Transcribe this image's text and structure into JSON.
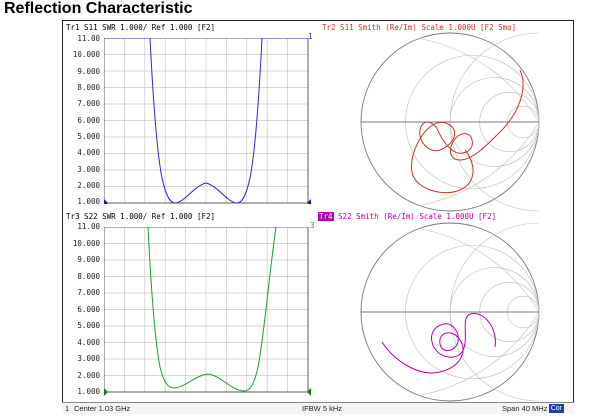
{
  "page_title": "Reflection Characteristic",
  "traces": {
    "tr1": {
      "label": "Tr1 S11 SWR 1.000/ Ref 1.000 [F2]",
      "color": "#2a2acf",
      "channel": "1"
    },
    "tr2": {
      "label": "Tr2 S11 Smith (Re/Im) Scale 1.000U [F2 Smo]",
      "color": "#c0392b"
    },
    "tr3": {
      "label": "Tr3 S22 SWR 1.000/ Ref 1.000 [F2]",
      "color": "#1f9d2a",
      "channel": "3"
    },
    "tr4": {
      "badge": "Tr4",
      "label": " S22 Smith (Re/Im) Scale 1.000U [F2]",
      "color": "#b000b0"
    }
  },
  "y_ticks": [
    "11.00",
    "10.000",
    "9.000",
    "8.000",
    "7.000",
    "6.000",
    "5.000",
    "4.000",
    "3.000",
    "2.000",
    "1.000"
  ],
  "status": {
    "channel": "1",
    "center": "Center 1.03 GHz",
    "ifbw": "IFBW 5 kHz",
    "span": "Span 40 MHz",
    "cor": "Cor"
  }
}
